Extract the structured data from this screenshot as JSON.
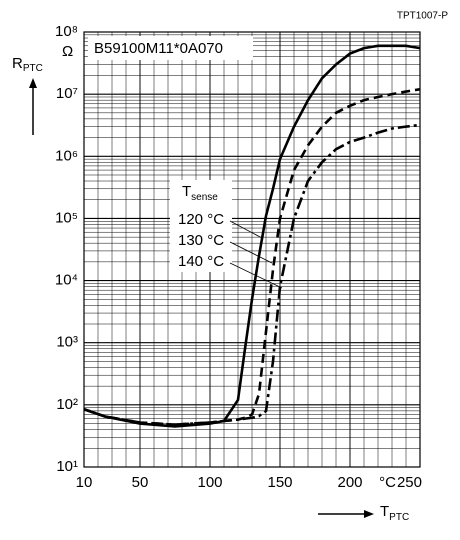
{
  "chart_data": {
    "type": "line",
    "id_label": "TPT1007-P",
    "annotation": "B59100M11*0A070",
    "y_label": "R",
    "y_label_sub": "PTC",
    "y_unit": "Ω",
    "x_label": "T",
    "x_label_sub": "PTC",
    "x_unit": "°C",
    "legend_title": "T",
    "legend_title_sub": "sense",
    "log_y": true,
    "grid": true,
    "minor_grid": true,
    "xlim": [
      10,
      250
    ],
    "xticks": [
      10,
      50,
      100,
      150,
      200,
      250
    ],
    "ylim": [
      10,
      100000000
    ],
    "yticks": [
      {
        "value": 10,
        "label": "10¹"
      },
      {
        "value": 100,
        "label": "10²"
      },
      {
        "value": 1000,
        "label": "10³"
      },
      {
        "value": 10000,
        "label": "10⁴"
      },
      {
        "value": 100000,
        "label": "10⁵"
      },
      {
        "value": 1000000,
        "label": "10⁶"
      },
      {
        "value": 10000000,
        "label": "10⁷"
      },
      {
        "value": 100000000,
        "label": "10⁸"
      }
    ],
    "x": [
      10,
      25,
      50,
      75,
      100,
      110,
      120,
      125,
      130,
      135,
      140,
      145,
      150,
      160,
      170,
      180,
      190,
      200,
      210,
      220,
      230,
      240,
      250
    ],
    "series": [
      {
        "name": "120 °C",
        "color": "#000000",
        "linestyle": "solid",
        "values": [
          85,
          65,
          50,
          45,
          50,
          55,
          120,
          800,
          5000,
          25000,
          110000,
          300000,
          900000,
          3000000,
          8000000,
          18000000,
          30000000,
          45000000,
          55000000,
          60000000,
          60000000,
          60000000,
          55000000
        ]
      },
      {
        "name": "130 °C",
        "color": "#000000",
        "linestyle": "dashed",
        "values": [
          85,
          65,
          52,
          48,
          52,
          55,
          58,
          62,
          70,
          150,
          1500,
          15000,
          100000,
          600000,
          1500000,
          3000000,
          5000000,
          6500000,
          8000000,
          9000000,
          10000000,
          11000000,
          12000000
        ]
      },
      {
        "name": "140 °C",
        "color": "#000000",
        "linestyle": "dashdot",
        "values": [
          85,
          65,
          52,
          48,
          52,
          55,
          58,
          60,
          62,
          66,
          80,
          500,
          8000,
          100000,
          400000,
          800000,
          1300000,
          1700000,
          2000000,
          2400000,
          2800000,
          3000000,
          3200000
        ]
      }
    ]
  }
}
